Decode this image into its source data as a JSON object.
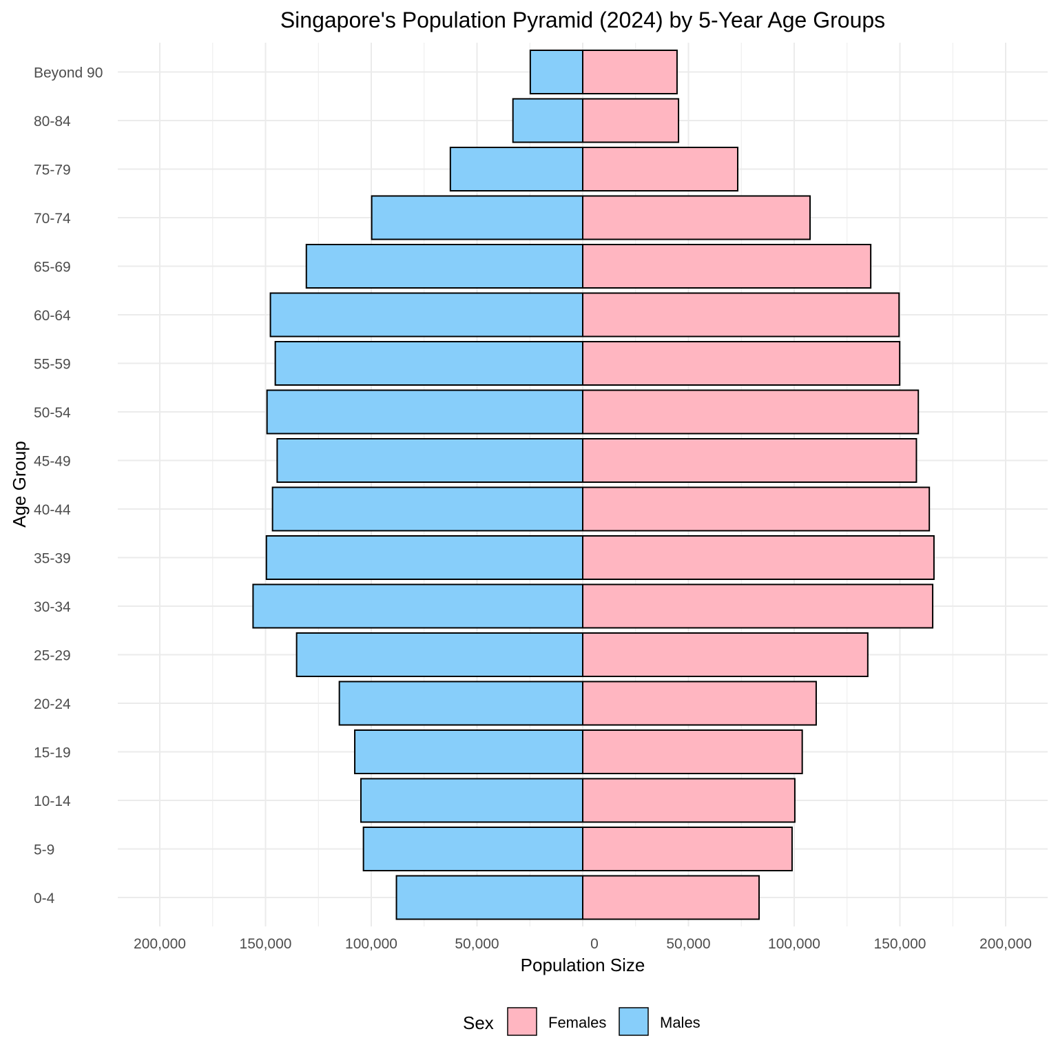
{
  "chart_data": {
    "type": "bar",
    "orientation": "horizontal",
    "title": "Singapore's Population Pyramid (2024) by 5-Year Age Groups",
    "xlabel": "Population Size",
    "ylabel": "Age Group",
    "xlim": [
      -200000,
      200000
    ],
    "x_ticks": [
      -200000,
      -150000,
      -100000,
      -50000,
      0,
      50000,
      100000,
      150000,
      200000
    ],
    "x_tick_labels": [
      "200,000",
      "150,000",
      "100,000",
      "50,000",
      "0",
      "50,000",
      "100,000",
      "150,000",
      "200,000"
    ],
    "categories": [
      "0-4",
      "5-9",
      "10-14",
      "15-19",
      "20-24",
      "25-29",
      "30-34",
      "35-39",
      "40-44",
      "45-49",
      "50-54",
      "55-59",
      "60-64",
      "65-69",
      "70-74",
      "75-79",
      "80-84",
      "Beyond 90"
    ],
    "series": [
      {
        "name": "Females",
        "color": "#FFB6C1",
        "side": "right",
        "values": [
          83400,
          99000,
          100300,
          103800,
          110400,
          134800,
          165500,
          166100,
          163900,
          157800,
          158700,
          149900,
          149600,
          136200,
          107500,
          73300,
          45300,
          44600
        ]
      },
      {
        "name": "Males",
        "color": "#87CEFA",
        "side": "left",
        "values": [
          88100,
          103700,
          104900,
          107800,
          115100,
          135300,
          155900,
          149600,
          146700,
          144500,
          149300,
          145400,
          147700,
          130700,
          99800,
          62600,
          33000,
          24800
        ]
      }
    ],
    "grid": true,
    "legend": {
      "title": "Sex",
      "position": "bottom",
      "entries": [
        "Females",
        "Males"
      ]
    }
  }
}
